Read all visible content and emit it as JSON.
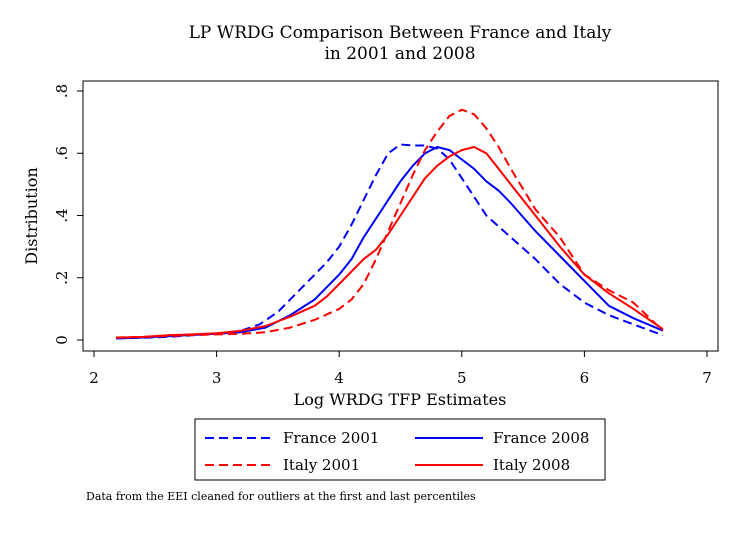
{
  "chart_data": {
    "type": "line",
    "title_lines": [
      "LP WRDG Comparison Between France and Italy",
      "in 2001 and 2008"
    ],
    "xlabel": "Log WRDG TFP Estimates",
    "ylabel": "Distribution",
    "xlim": [
      2,
      7
    ],
    "ylim": [
      0,
      0.8
    ],
    "x_ticks": [
      2,
      3,
      4,
      5,
      6,
      7
    ],
    "x_tick_labels": [
      "2",
      "3",
      "4",
      "5",
      "6",
      "7"
    ],
    "y_ticks": [
      0,
      0.2,
      0.4,
      0.6,
      0.8
    ],
    "y_tick_labels": [
      "0",
      ".2",
      ".4",
      ".6",
      ".8"
    ],
    "grid": false,
    "legend_position": "bottom",
    "series": [
      {
        "name": "France 2001",
        "color": "#0000ff",
        "dash": "dashed",
        "x": [
          2.18,
          2.4,
          2.6,
          2.8,
          3.0,
          3.2,
          3.35,
          3.5,
          3.7,
          3.9,
          4.0,
          4.1,
          4.2,
          4.3,
          4.4,
          4.5,
          4.6,
          4.7,
          4.8,
          4.9,
          5.0,
          5.1,
          5.2,
          5.4,
          5.6,
          5.8,
          6.0,
          6.2,
          6.4,
          6.64
        ],
        "y": [
          0.005,
          0.007,
          0.01,
          0.015,
          0.02,
          0.03,
          0.05,
          0.09,
          0.17,
          0.25,
          0.3,
          0.37,
          0.45,
          0.53,
          0.6,
          0.628,
          0.625,
          0.625,
          0.615,
          0.58,
          0.52,
          0.46,
          0.4,
          0.33,
          0.26,
          0.18,
          0.12,
          0.08,
          0.05,
          0.015
        ]
      },
      {
        "name": "France 2008",
        "color": "#0000ff",
        "dash": "solid",
        "x": [
          2.18,
          2.4,
          2.6,
          2.8,
          3.0,
          3.2,
          3.4,
          3.6,
          3.8,
          3.9,
          4.0,
          4.1,
          4.2,
          4.3,
          4.4,
          4.5,
          4.6,
          4.7,
          4.8,
          4.9,
          5.0,
          5.1,
          5.2,
          5.3,
          5.4,
          5.6,
          5.8,
          6.0,
          6.2,
          6.4,
          6.64
        ],
        "y": [
          0.005,
          0.008,
          0.012,
          0.016,
          0.02,
          0.025,
          0.04,
          0.08,
          0.13,
          0.17,
          0.21,
          0.26,
          0.33,
          0.39,
          0.45,
          0.51,
          0.56,
          0.6,
          0.62,
          0.61,
          0.58,
          0.55,
          0.51,
          0.48,
          0.44,
          0.35,
          0.27,
          0.19,
          0.11,
          0.07,
          0.03
        ]
      },
      {
        "name": "Italy 2001",
        "color": "#ff0000",
        "dash": "dashed",
        "x": [
          2.18,
          2.4,
          2.6,
          2.8,
          3.0,
          3.2,
          3.4,
          3.6,
          3.8,
          4.0,
          4.1,
          4.2,
          4.3,
          4.4,
          4.5,
          4.6,
          4.7,
          4.8,
          4.9,
          5.0,
          5.1,
          5.2,
          5.3,
          5.4,
          5.6,
          5.8,
          6.0,
          6.2,
          6.4,
          6.64
        ],
        "y": [
          0.008,
          0.01,
          0.013,
          0.016,
          0.018,
          0.02,
          0.025,
          0.04,
          0.065,
          0.1,
          0.13,
          0.18,
          0.26,
          0.35,
          0.44,
          0.53,
          0.61,
          0.67,
          0.72,
          0.74,
          0.725,
          0.68,
          0.62,
          0.55,
          0.42,
          0.33,
          0.21,
          0.16,
          0.12,
          0.03
        ]
      },
      {
        "name": "Italy 2008",
        "color": "#ff0000",
        "dash": "solid",
        "x": [
          2.18,
          2.4,
          2.6,
          2.8,
          3.0,
          3.2,
          3.4,
          3.6,
          3.8,
          3.9,
          4.0,
          4.1,
          4.2,
          4.3,
          4.4,
          4.5,
          4.6,
          4.7,
          4.8,
          4.9,
          5.0,
          5.1,
          5.2,
          5.3,
          5.4,
          5.6,
          5.8,
          6.0,
          6.2,
          6.4,
          6.64
        ],
        "y": [
          0.007,
          0.01,
          0.015,
          0.018,
          0.022,
          0.03,
          0.045,
          0.075,
          0.11,
          0.14,
          0.18,
          0.22,
          0.26,
          0.29,
          0.34,
          0.4,
          0.46,
          0.52,
          0.56,
          0.59,
          0.61,
          0.62,
          0.6,
          0.55,
          0.5,
          0.4,
          0.3,
          0.21,
          0.15,
          0.1,
          0.035
        ]
      }
    ],
    "note": "Data from the EEI cleaned for outliers at the first and last percentiles"
  }
}
